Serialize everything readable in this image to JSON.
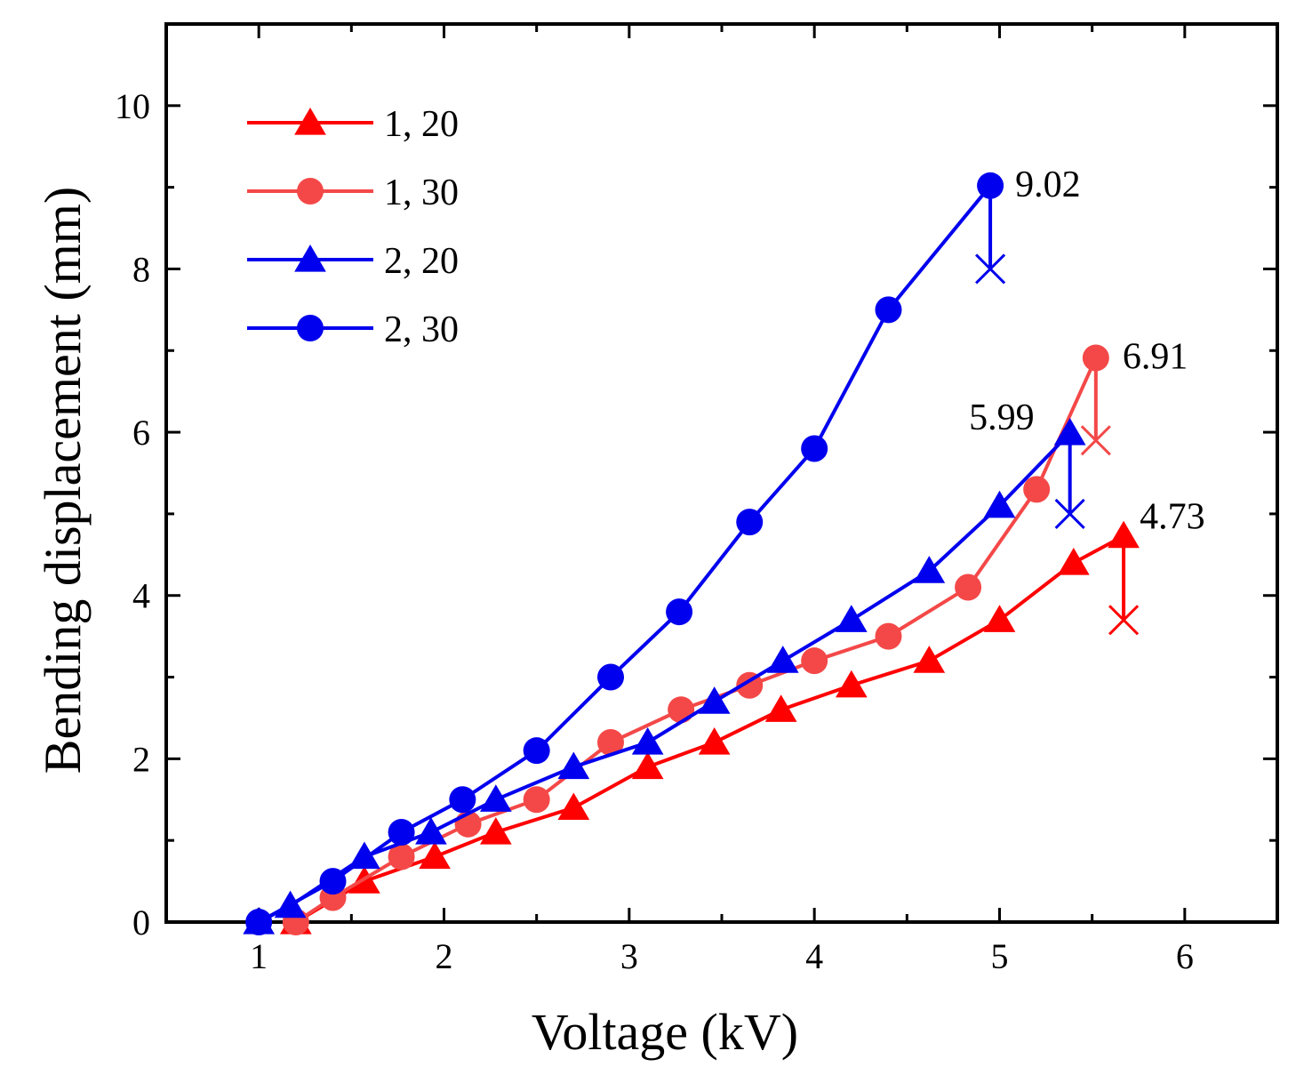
{
  "chart_data": {
    "type": "line",
    "title": "",
    "xlabel": "Voltage (kV)",
    "ylabel": "Bending displacement (mm)",
    "xlim": [
      0.5,
      6.5
    ],
    "ylim": [
      0,
      11
    ],
    "xticks": [
      1,
      2,
      3,
      4,
      5,
      6
    ],
    "xtick_labels": [
      "1",
      "2",
      "3",
      "4",
      "5",
      "6"
    ],
    "yticks": [
      0,
      2,
      4,
      6,
      8,
      10
    ],
    "ytick_labels": [
      "0",
      "2",
      "4",
      "6",
      "8",
      "10"
    ],
    "legend_position": "top-left",
    "series": [
      {
        "name": "1, 20",
        "color": "#ff0000",
        "marker": "triangle",
        "x": [
          1.2,
          1.57,
          1.95,
          2.28,
          2.7,
          3.1,
          3.46,
          3.82,
          4.2,
          4.62,
          5.0,
          5.4,
          5.67
        ],
        "y": [
          0,
          0.5,
          0.8,
          1.1,
          1.4,
          1.9,
          2.2,
          2.6,
          2.9,
          3.2,
          3.7,
          4.4,
          4.73
        ],
        "breakdown": {
          "x": 5.67,
          "y": 3.7
        },
        "annotation": "4.73"
      },
      {
        "name": "1, 30",
        "color": "#f44848",
        "marker": "circle",
        "x": [
          1.2,
          1.4,
          1.77,
          2.13,
          2.5,
          2.9,
          3.28,
          3.65,
          4.0,
          4.4,
          4.83,
          5.2,
          5.52
        ],
        "y": [
          0,
          0.3,
          0.8,
          1.2,
          1.5,
          2.2,
          2.6,
          2.9,
          3.2,
          3.5,
          4.1,
          5.3,
          6.91
        ],
        "breakdown": {
          "x": 5.52,
          "y": 5.9
        },
        "annotation": "6.91"
      },
      {
        "name": "2, 20",
        "color": "#0000ee",
        "marker": "triangle",
        "x": [
          1.0,
          1.17,
          1.57,
          1.93,
          2.28,
          2.7,
          3.1,
          3.46,
          3.83,
          4.2,
          4.62,
          5.0,
          5.38
        ],
        "y": [
          0,
          0.2,
          0.8,
          1.1,
          1.5,
          1.9,
          2.2,
          2.7,
          3.2,
          3.7,
          4.3,
          5.1,
          5.99
        ],
        "breakdown": {
          "x": 5.38,
          "y": 5.0
        },
        "annotation": "5.99"
      },
      {
        "name": "2, 30",
        "color": "#0000ee",
        "marker": "circle",
        "x": [
          1.0,
          1.4,
          1.77,
          2.1,
          2.5,
          2.9,
          3.27,
          3.65,
          4.0,
          4.4,
          4.95
        ],
        "y": [
          0,
          0.5,
          1.1,
          1.5,
          2.1,
          3.0,
          3.8,
          4.9,
          5.8,
          7.5,
          9.02
        ],
        "breakdown": {
          "x": 4.95,
          "y": 8.0
        },
        "annotation": "9.02"
      }
    ]
  }
}
